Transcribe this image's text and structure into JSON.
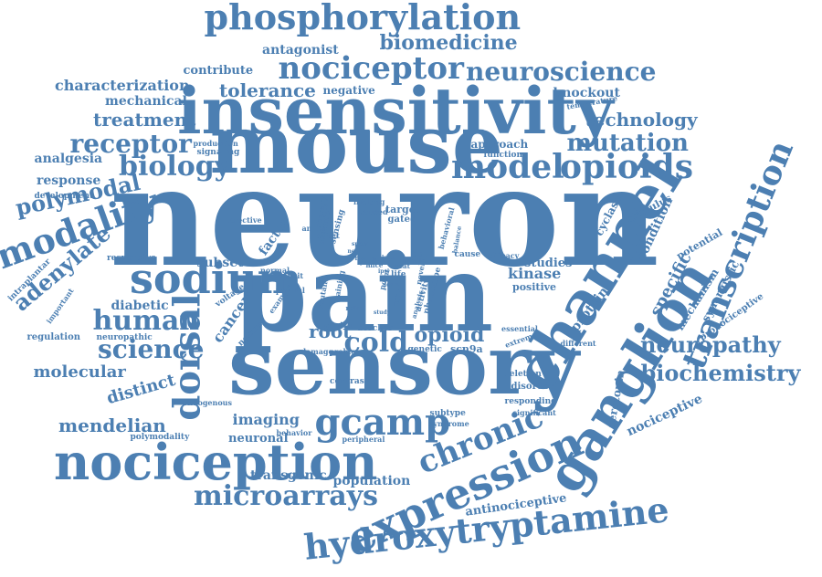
{
  "colors": {
    "word": "#4c7fb2",
    "background": "#ffffff"
  },
  "words": [
    {
      "text": "neuron",
      "rot": 0
    },
    {
      "text": "pain",
      "rot": 0
    },
    {
      "text": "sensory",
      "rot": 0
    },
    {
      "text": "mouse",
      "rot": 0
    },
    {
      "text": "insensitivity",
      "rot": 0
    },
    {
      "text": "channel",
      "rot": -58
    },
    {
      "text": "ganglion",
      "rot": -58
    },
    {
      "text": "expression",
      "rot": -24
    },
    {
      "text": "hydroxytryptamine",
      "rot": -6
    },
    {
      "text": "nociception",
      "rot": 0
    },
    {
      "text": "transcription",
      "rot": -68
    },
    {
      "text": "sodium",
      "rot": 0
    },
    {
      "text": "phosphorylation",
      "rot": 0
    },
    {
      "text": "nociceptor",
      "rot": 0
    },
    {
      "text": "model",
      "rot": 0
    },
    {
      "text": "opioids",
      "rot": 0
    },
    {
      "text": "gcamp",
      "rot": 0
    },
    {
      "text": "chronic",
      "rot": -22
    },
    {
      "text": "dorsal",
      "rot": -90
    },
    {
      "text": "modality",
      "rot": -20
    },
    {
      "text": "microarrays",
      "rot": 0
    },
    {
      "text": "biology",
      "rot": 0
    },
    {
      "text": "receptor",
      "rot": 0
    },
    {
      "text": "neuroscience",
      "rot": 0
    },
    {
      "text": "mutation",
      "rot": 0
    },
    {
      "text": "neuropathy",
      "rot": 0
    },
    {
      "text": "biochemistry",
      "rot": 0
    },
    {
      "text": "human",
      "rot": 0
    },
    {
      "text": "science",
      "rot": 0
    },
    {
      "text": "cold",
      "rot": 0
    },
    {
      "text": "technology",
      "rot": 0
    },
    {
      "text": "adenylate",
      "rot": -40
    },
    {
      "text": "polymodal",
      "rot": -12
    },
    {
      "text": "biomedicine",
      "rot": 0
    },
    {
      "text": "treatment",
      "rot": 0
    },
    {
      "text": "mendelian",
      "rot": 0
    },
    {
      "text": "molecular",
      "rot": 0
    },
    {
      "text": "distinct",
      "rot": -16
    },
    {
      "text": "tolerance",
      "rot": 0
    },
    {
      "text": "opioid",
      "rot": 0
    },
    {
      "text": "root",
      "rot": 0
    },
    {
      "text": "cancer",
      "rot": -55
    },
    {
      "text": "protein",
      "rot": -52
    },
    {
      "text": "specific",
      "rot": -62
    },
    {
      "text": "characterization",
      "rot": 0
    },
    {
      "text": "response",
      "rot": 0
    },
    {
      "text": "antagonist",
      "rot": 0
    },
    {
      "text": "imaging",
      "rot": 0
    },
    {
      "text": "analgesia",
      "rot": 0
    },
    {
      "text": "diabetic",
      "rot": 0
    },
    {
      "text": "knockout",
      "rot": 0
    },
    {
      "text": "kinase",
      "rot": 0
    },
    {
      "text": "mechanical",
      "rot": 0
    },
    {
      "text": "subset",
      "rot": 0
    },
    {
      "text": "nociceptive",
      "rot": -25
    },
    {
      "text": "transgenic",
      "rot": 0
    },
    {
      "text": "population",
      "rot": 0
    },
    {
      "text": "antinociceptive",
      "rot": -8
    },
    {
      "text": "neuronal",
      "rot": 0
    },
    {
      "text": "approach",
      "rot": 0
    },
    {
      "text": "factor",
      "rot": -55
    },
    {
      "text": "cyclase",
      "rot": -62
    },
    {
      "text": "condition",
      "rot": -65
    },
    {
      "text": "stimulus",
      "rot": -28
    },
    {
      "text": "potential",
      "rot": -30
    },
    {
      "text": "mechanism",
      "rot": -58
    },
    {
      "text": "synergistic",
      "rot": -62
    },
    {
      "text": "pronociceptive",
      "rot": -35
    },
    {
      "text": "serotonin",
      "rot": -80
    },
    {
      "text": "contribute",
      "rot": 0
    },
    {
      "text": "negative",
      "rot": 0
    },
    {
      "text": "temperature",
      "rot": -10
    },
    {
      "text": "production",
      "rot": 0
    },
    {
      "text": "signaling",
      "rot": 0
    },
    {
      "text": "function",
      "rot": 0
    },
    {
      "text": "development",
      "rot": 0
    },
    {
      "text": "responsive",
      "rot": 0
    },
    {
      "text": "intraplantar",
      "rot": -45
    },
    {
      "text": "important",
      "rot": -55
    },
    {
      "text": "regulation",
      "rot": 0
    },
    {
      "text": "neuropathic",
      "rot": 0
    },
    {
      "text": "voltage",
      "rot": -35
    },
    {
      "text": "noxious",
      "rot": -45
    },
    {
      "text": "endogenous",
      "rot": 0
    },
    {
      "text": "polymodality",
      "rot": 0
    },
    {
      "text": "behavior",
      "rot": 0
    },
    {
      "text": "peripheral",
      "rot": 0
    },
    {
      "text": "genetic",
      "rot": 0
    },
    {
      "text": "scn9a",
      "rot": 0
    },
    {
      "text": "studies",
      "rot": 0
    },
    {
      "text": "positive",
      "rot": 0
    },
    {
      "text": "different",
      "rot": 0
    },
    {
      "text": "extreme",
      "rot": -20
    },
    {
      "text": "essential",
      "rot": 0
    },
    {
      "text": "clinical",
      "rot": 0
    },
    {
      "text": "damage",
      "rot": 0
    },
    {
      "text": "problem",
      "rot": 0
    },
    {
      "text": "blocker",
      "rot": 0
    },
    {
      "text": "contrast",
      "rot": 0
    },
    {
      "text": "deletion",
      "rot": 0
    },
    {
      "text": "disorder",
      "rot": 0
    },
    {
      "text": "responding",
      "rot": 0
    },
    {
      "text": "significant",
      "rot": 0
    },
    {
      "text": "subtype",
      "rot": 0
    },
    {
      "text": "syndrome",
      "rot": 0
    },
    {
      "text": "target",
      "rot": 0
    },
    {
      "text": "gated",
      "rot": 0
    },
    {
      "text": "cell",
      "rot": 0
    },
    {
      "text": "cause",
      "rot": 0
    },
    {
      "text": "efficacy",
      "rot": 0
    },
    {
      "text": "normal",
      "rot": 0
    },
    {
      "text": "sensation",
      "rot": -80
    },
    {
      "text": "sensing",
      "rot": -75
    },
    {
      "text": "lifelong",
      "rot": 0
    },
    {
      "text": "selective",
      "rot": 0
    },
    {
      "text": "animal",
      "rot": 0
    },
    {
      "text": "effect",
      "rot": 0
    },
    {
      "text": "therapy",
      "rot": -80
    },
    {
      "text": "caused",
      "rot": 0
    },
    {
      "text": "life",
      "rot": 0
    },
    {
      "text": "behavioral",
      "rot": -75
    },
    {
      "text": "mutant",
      "rot": -80
    },
    {
      "text": "gaining",
      "rot": -80
    },
    {
      "text": "example",
      "rot": -55
    },
    {
      "text": "phenotype",
      "rot": -75
    },
    {
      "text": "novel",
      "rot": -80
    },
    {
      "text": "activity",
      "rot": -75
    },
    {
      "text": "point",
      "rot": -75
    },
    {
      "text": "drug",
      "rot": -75
    },
    {
      "text": "painful",
      "rot": 0
    },
    {
      "text": "deficit",
      "rot": 0
    },
    {
      "text": "loss",
      "rot": 0
    },
    {
      "text": "heat",
      "rot": 0
    },
    {
      "text": "relief",
      "rot": 0
    },
    {
      "text": "balance",
      "rot": -80
    },
    {
      "text": "profile",
      "rot": 0
    },
    {
      "text": "analysis",
      "rot": -75
    },
    {
      "text": "many",
      "rot": 0
    },
    {
      "text": "mice",
      "rot": 0
    },
    {
      "text": "lives",
      "rot": 0
    },
    {
      "text": "pups",
      "rot": 0
    },
    {
      "text": "lack",
      "rot": 0
    },
    {
      "text": "ipsi",
      "rot": 0
    },
    {
      "text": "study",
      "rot": 0
    },
    {
      "text": "specs",
      "rot": 0
    },
    {
      "text": "new",
      "rot": 0
    }
  ]
}
